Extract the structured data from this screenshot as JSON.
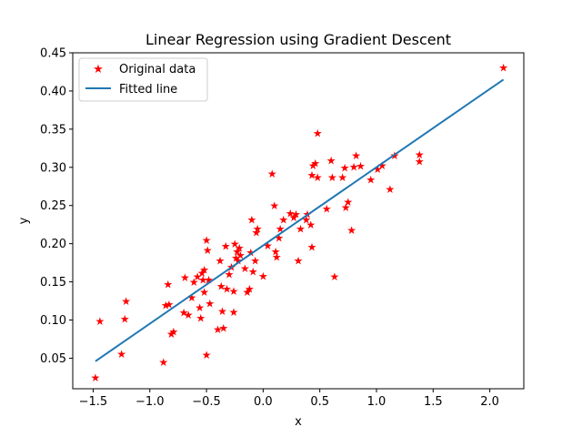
{
  "chart_data": {
    "type": "scatter",
    "title": "Linear Regression using Gradient Descent",
    "xlabel": "x",
    "ylabel": "y",
    "xlim": [
      -1.68,
      2.3
    ],
    "ylim": [
      0.01,
      0.45
    ],
    "xticks": [
      -1.5,
      -1.0,
      -0.5,
      0.0,
      0.5,
      1.0,
      1.5,
      2.0
    ],
    "xtick_labels": [
      "−1.5",
      "−1.0",
      "−0.5",
      "0.0",
      "0.5",
      "1.0",
      "1.5",
      "2.0"
    ],
    "yticks": [
      0.05,
      0.1,
      0.15,
      0.2,
      0.25,
      0.3,
      0.35,
      0.4,
      0.45
    ],
    "ytick_labels": [
      "0.05",
      "0.10",
      "0.15",
      "0.20",
      "0.25",
      "0.30",
      "0.35",
      "0.40",
      "0.45"
    ],
    "grid": false,
    "legend_position": "upper-left",
    "series": [
      {
        "name": "Original data",
        "kind": "scatter",
        "marker": "star",
        "color": "#ff0000",
        "points": [
          [
            -1.48,
            0.025
          ],
          [
            -1.44,
            0.099
          ],
          [
            -1.25,
            0.056
          ],
          [
            -1.22,
            0.102
          ],
          [
            -1.21,
            0.125
          ],
          [
            -0.88,
            0.045
          ],
          [
            -0.86,
            0.12
          ],
          [
            -0.84,
            0.147
          ],
          [
            -0.83,
            0.121
          ],
          [
            -0.81,
            0.082
          ],
          [
            -0.79,
            0.085
          ],
          [
            -0.7,
            0.11
          ],
          [
            -0.69,
            0.156
          ],
          [
            -0.66,
            0.107
          ],
          [
            -0.63,
            0.13
          ],
          [
            -0.61,
            0.15
          ],
          [
            -0.58,
            0.157
          ],
          [
            -0.56,
            0.117
          ],
          [
            -0.55,
            0.103
          ],
          [
            -0.54,
            0.162
          ],
          [
            -0.53,
            0.153
          ],
          [
            -0.52,
            0.166
          ],
          [
            -0.52,
            0.137
          ],
          [
            -0.5,
            0.205
          ],
          [
            -0.5,
            0.055
          ],
          [
            -0.49,
            0.192
          ],
          [
            -0.48,
            0.153
          ],
          [
            -0.47,
            0.122
          ],
          [
            -0.4,
            0.088
          ],
          [
            -0.38,
            0.178
          ],
          [
            -0.37,
            0.145
          ],
          [
            -0.36,
            0.112
          ],
          [
            -0.35,
            0.09
          ],
          [
            -0.33,
            0.197
          ],
          [
            -0.32,
            0.141
          ],
          [
            -0.3,
            0.16
          ],
          [
            -0.28,
            0.17
          ],
          [
            -0.26,
            0.138
          ],
          [
            -0.26,
            0.111
          ],
          [
            -0.25,
            0.2
          ],
          [
            -0.24,
            0.182
          ],
          [
            -0.23,
            0.19
          ],
          [
            -0.22,
            0.178
          ],
          [
            -0.21,
            0.195
          ],
          [
            -0.2,
            0.185
          ],
          [
            -0.16,
            0.168
          ],
          [
            -0.14,
            0.137
          ],
          [
            -0.12,
            0.141
          ],
          [
            -0.11,
            0.189
          ],
          [
            -0.1,
            0.232
          ],
          [
            -0.09,
            0.164
          ],
          [
            -0.07,
            0.178
          ],
          [
            -0.06,
            0.215
          ],
          [
            -0.05,
            0.22
          ],
          [
            0.0,
            0.158
          ],
          [
            0.04,
            0.198
          ],
          [
            0.08,
            0.292
          ],
          [
            0.1,
            0.25
          ],
          [
            0.11,
            0.19
          ],
          [
            0.12,
            0.183
          ],
          [
            0.14,
            0.208
          ],
          [
            0.15,
            0.22
          ],
          [
            0.18,
            0.232
          ],
          [
            0.24,
            0.24
          ],
          [
            0.27,
            0.235
          ],
          [
            0.29,
            0.239
          ],
          [
            0.31,
            0.178
          ],
          [
            0.33,
            0.22
          ],
          [
            0.38,
            0.232
          ],
          [
            0.39,
            0.239
          ],
          [
            0.42,
            0.225
          ],
          [
            0.43,
            0.196
          ],
          [
            0.43,
            0.29
          ],
          [
            0.44,
            0.303
          ],
          [
            0.46,
            0.306
          ],
          [
            0.48,
            0.287
          ],
          [
            0.48,
            0.345
          ],
          [
            0.56,
            0.246
          ],
          [
            0.6,
            0.309
          ],
          [
            0.61,
            0.287
          ],
          [
            0.63,
            0.157
          ],
          [
            0.7,
            0.287
          ],
          [
            0.72,
            0.3
          ],
          [
            0.73,
            0.248
          ],
          [
            0.75,
            0.255
          ],
          [
            0.78,
            0.218
          ],
          [
            0.8,
            0.301
          ],
          [
            0.82,
            0.316
          ],
          [
            0.86,
            0.302
          ],
          [
            0.95,
            0.284
          ],
          [
            1.01,
            0.298
          ],
          [
            1.05,
            0.303
          ],
          [
            1.12,
            0.272
          ],
          [
            1.16,
            0.316
          ],
          [
            1.38,
            0.317
          ],
          [
            1.38,
            0.308
          ],
          [
            2.12,
            0.431
          ]
        ]
      },
      {
        "name": "Fitted line",
        "kind": "line",
        "color": "#1f77b4",
        "points": [
          [
            -1.48,
            0.046
          ],
          [
            2.12,
            0.415
          ]
        ]
      }
    ]
  }
}
